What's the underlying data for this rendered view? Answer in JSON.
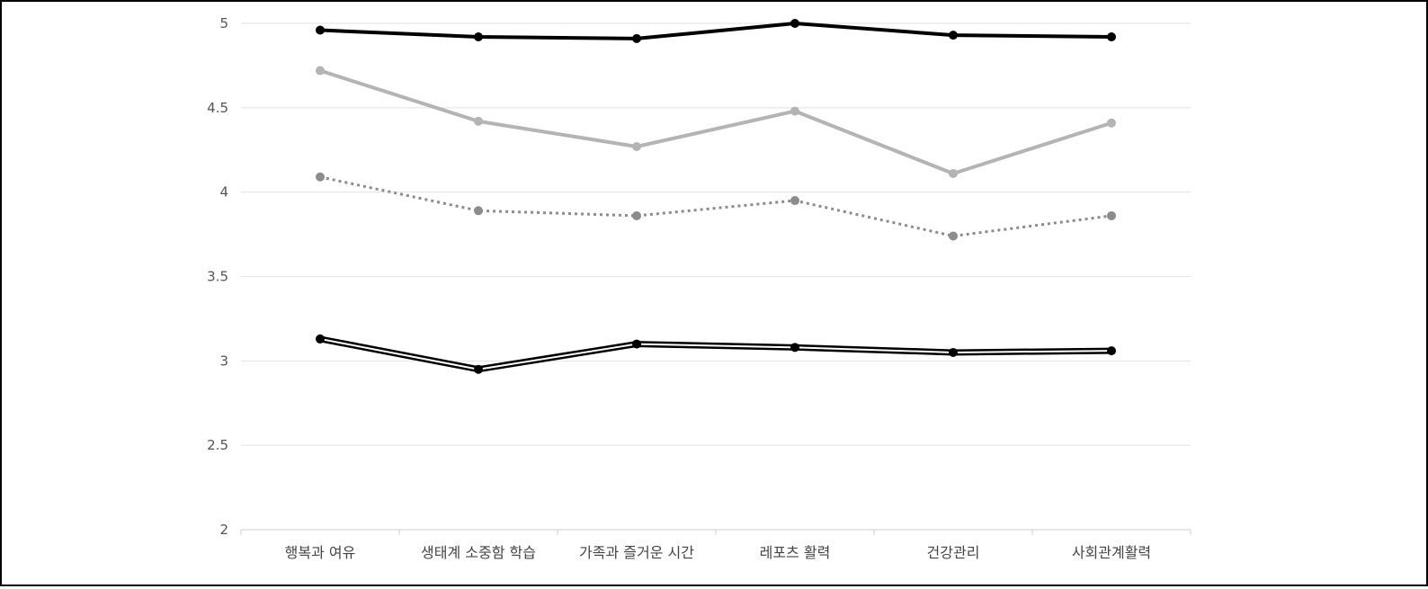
{
  "chart_data": {
    "type": "line",
    "title": "",
    "xlabel": "",
    "ylabel": "",
    "categories": [
      "행복과 여유",
      "생태계 소중함 학습",
      "가족과 즐거운 시간",
      "레포츠 활력",
      "건강관리",
      "사회관계활력"
    ],
    "ylim": [
      2,
      5
    ],
    "yticks": [
      2,
      2.5,
      3,
      3.5,
      4,
      4.5,
      5
    ],
    "ytick_labels": [
      "2",
      "2.5",
      "3",
      "3.5",
      "4",
      "4.5",
      "5"
    ],
    "grid": true,
    "legend": "none",
    "series": [
      {
        "values": [
          4.96,
          4.92,
          4.91,
          5.0,
          4.93,
          4.92
        ],
        "color": "#000000",
        "style": "solid-thick"
      },
      {
        "values": [
          4.72,
          4.42,
          4.27,
          4.48,
          4.11,
          4.41
        ],
        "color": "#b4b4b4",
        "style": "solid"
      },
      {
        "values": [
          4.09,
          3.89,
          3.86,
          3.95,
          3.74,
          3.86
        ],
        "color": "#8c8c8c",
        "style": "dotted"
      },
      {
        "values": [
          3.13,
          2.95,
          3.1,
          3.08,
          3.05,
          3.06
        ],
        "color": "#000000",
        "style": "double"
      }
    ]
  }
}
